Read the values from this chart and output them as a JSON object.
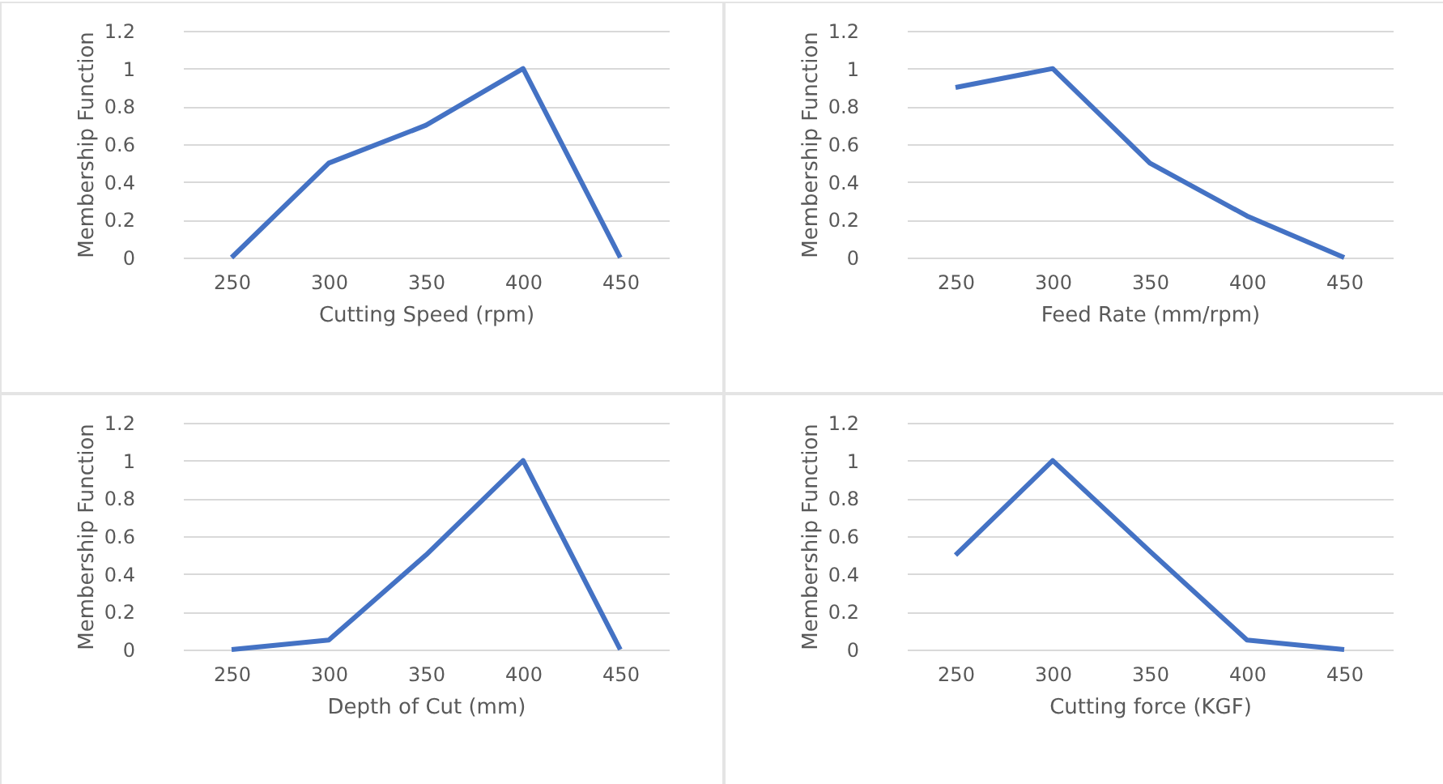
{
  "chart_data": [
    {
      "type": "line",
      "xlabel": "Cutting Speed (rpm)",
      "ylabel": "Membership Function",
      "categories": [
        "250",
        "300",
        "350",
        "400",
        "450"
      ],
      "series": [
        {
          "color": "#4472c4",
          "values": [
            0,
            0.5,
            0.7,
            1,
            0
          ]
        }
      ],
      "ylim": [
        0,
        1.2
      ],
      "yticks": [
        0,
        0.2,
        0.4,
        0.6,
        0.8,
        1,
        1.2
      ],
      "grid": "y",
      "legend": false
    },
    {
      "type": "line",
      "xlabel": "Feed Rate (mm/rpm)",
      "ylabel": "Membership Function",
      "categories": [
        "250",
        "300",
        "350",
        "400",
        "450"
      ],
      "series": [
        {
          "color": "#4472c4",
          "values": [
            0.9,
            1,
            0.5,
            0.22,
            0
          ]
        }
      ],
      "ylim": [
        0,
        1.2
      ],
      "yticks": [
        0,
        0.2,
        0.4,
        0.6,
        0.8,
        1,
        1.2
      ],
      "grid": "y",
      "legend": false
    },
    {
      "type": "line",
      "xlabel": "Depth of Cut (mm)",
      "ylabel": "Membership Function",
      "categories": [
        "250",
        "300",
        "350",
        "400",
        "450"
      ],
      "series": [
        {
          "color": "#4472c4",
          "values": [
            0,
            0.05,
            0.5,
            1,
            0
          ]
        }
      ],
      "ylim": [
        0,
        1.2
      ],
      "yticks": [
        0,
        0.2,
        0.4,
        0.6,
        0.8,
        1,
        1.2
      ],
      "grid": "y",
      "legend": false
    },
    {
      "type": "line",
      "xlabel": "Cutting force (KGF)",
      "ylabel": "Membership Function",
      "categories": [
        "250",
        "300",
        "350",
        "400",
        "450"
      ],
      "series": [
        {
          "color": "#4472c4",
          "values": [
            0.5,
            1,
            0.52,
            0.05,
            0
          ]
        }
      ],
      "ylim": [
        0,
        1.2
      ],
      "yticks": [
        0,
        0.2,
        0.4,
        0.6,
        0.8,
        1,
        1.2
      ],
      "grid": "y",
      "legend": false
    }
  ]
}
